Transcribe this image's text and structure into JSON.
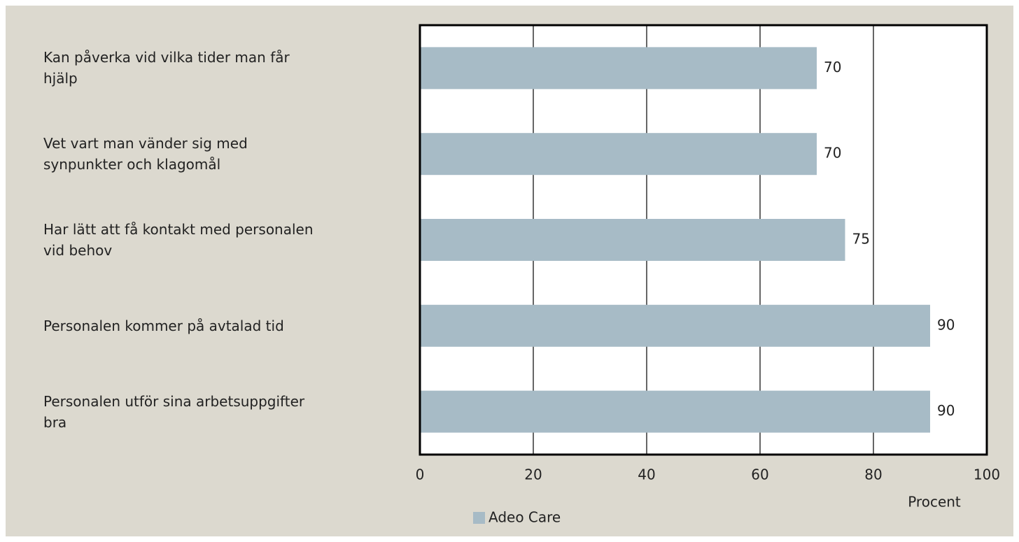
{
  "chart_data": {
    "type": "bar",
    "orientation": "horizontal",
    "categories": [
      "Kan påverka vid vilka tider man får\nhjälp",
      "Vet vart man vänder sig med\nsynpunkter och klagomål",
      "Har lätt att få kontakt med personalen\nvid behov",
      "Personalen kommer på avtalad tid",
      "Personalen utför sina arbetsuppgifter\nbra"
    ],
    "series": [
      {
        "name": "Adeo Care",
        "color": "#a7bbc6",
        "values": [
          70,
          70,
          75,
          90,
          90
        ]
      }
    ],
    "xlim": [
      0,
      100
    ],
    "xticks": [
      0,
      20,
      40,
      60,
      80,
      100
    ],
    "xlabel": "Procent",
    "grid": true,
    "legend": "bottom-left"
  }
}
